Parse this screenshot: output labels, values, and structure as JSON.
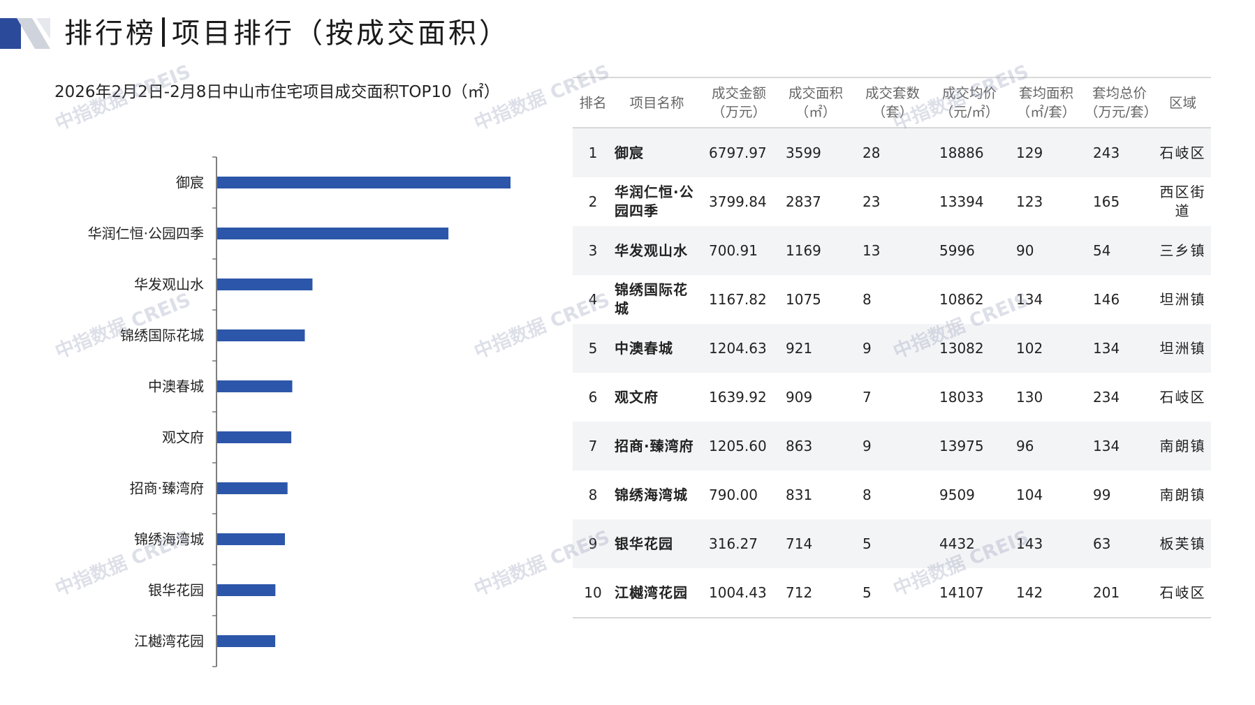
{
  "header": {
    "title_left": "排行榜",
    "title_right": "项目排行（按成交面积）"
  },
  "colors": {
    "bar": "#2c56a9",
    "accent_dark": "#2b4a9a",
    "accent_light": "#cfd3dc",
    "header_text": "#666666",
    "row_stripe": "#f3f4f6"
  },
  "watermark": "中指数据 CREIS",
  "chart_data": {
    "type": "bar",
    "orientation": "horizontal",
    "title": "2026年2月2日-2月8日中山市住宅项目成交面积TOP10（㎡）",
    "categories": [
      "御宸",
      "华润仁恒·公园四季",
      "华发观山水",
      "锦绣国际花城",
      "中澳春城",
      "观文府",
      "招商·臻湾府",
      "锦绣海湾城",
      "银华花园",
      "江樾湾花园"
    ],
    "values": [
      3599,
      2837,
      1169,
      1075,
      921,
      909,
      863,
      831,
      714,
      712
    ],
    "xlim": [
      0,
      4000
    ],
    "grid": false,
    "legend": "none"
  },
  "table": {
    "headers": [
      "排名",
      "项目名称",
      "成交金额\n（万元）",
      "成交面积\n（㎡）",
      "成交套数\n（套）",
      "成交均价\n（元/㎡）",
      "套均面积\n（㎡/套）",
      "套均总价\n（万元/套）",
      "区域"
    ],
    "rows": [
      [
        "1",
        "御宸",
        "6797.97",
        "3599",
        "28",
        "18886",
        "129",
        "243",
        "石岐区"
      ],
      [
        "2",
        "华润仁恒·公园四季",
        "3799.84",
        "2837",
        "23",
        "13394",
        "123",
        "165",
        "西区街道"
      ],
      [
        "3",
        "华发观山水",
        "700.91",
        "1169",
        "13",
        "5996",
        "90",
        "54",
        "三乡镇"
      ],
      [
        "4",
        "锦绣国际花城",
        "1167.82",
        "1075",
        "8",
        "10862",
        "134",
        "146",
        "坦洲镇"
      ],
      [
        "5",
        "中澳春城",
        "1204.63",
        "921",
        "9",
        "13082",
        "102",
        "134",
        "坦洲镇"
      ],
      [
        "6",
        "观文府",
        "1639.92",
        "909",
        "7",
        "18033",
        "130",
        "234",
        "石岐区"
      ],
      [
        "7",
        "招商·臻湾府",
        "1205.60",
        "863",
        "9",
        "13975",
        "96",
        "134",
        "南朗镇"
      ],
      [
        "8",
        "锦绣海湾城",
        "790.00",
        "831",
        "8",
        "9509",
        "104",
        "99",
        "南朗镇"
      ],
      [
        "9",
        "银华花园",
        "316.27",
        "714",
        "5",
        "4432",
        "143",
        "63",
        "板芙镇"
      ],
      [
        "10",
        "江樾湾花园",
        "1004.43",
        "712",
        "5",
        "14107",
        "142",
        "201",
        "石岐区"
      ]
    ]
  }
}
